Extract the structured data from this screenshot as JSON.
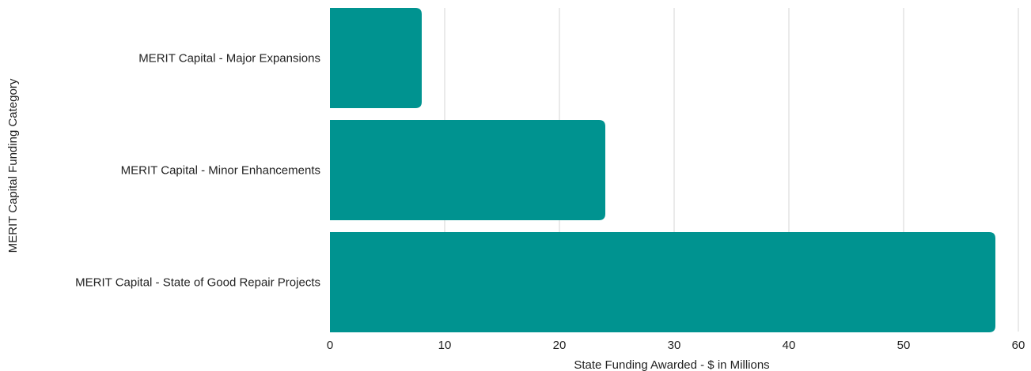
{
  "chart_data": {
    "type": "bar",
    "orientation": "horizontal",
    "categories": [
      "MERIT Capital - Major Expansions",
      "MERIT Capital - Minor Enhancements",
      "MERIT Capital - State of Good Repair Projects"
    ],
    "values": [
      8,
      24,
      58
    ],
    "xlabel": "State Funding Awarded - $ in Millions",
    "ylabel": "MERIT Capital Funding Category",
    "xlim": [
      0,
      60
    ],
    "xticks": [
      "0",
      "10",
      "20",
      "30",
      "40",
      "50",
      "60"
    ],
    "grid": "vertical",
    "bar_color": "#009390",
    "grid_color": "#d4d4d4",
    "text_color": "#222222"
  }
}
